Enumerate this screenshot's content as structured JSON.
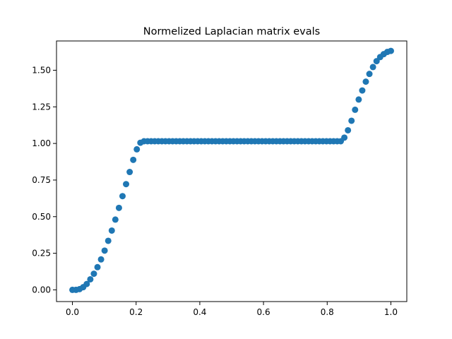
{
  "chart_data": {
    "type": "scatter",
    "title": "Normelized Laplacian matrix evals",
    "xlabel": "",
    "ylabel": "",
    "xlim": [
      -0.05,
      1.05
    ],
    "ylim": [
      -0.08,
      1.7
    ],
    "xticks": [
      0.0,
      0.2,
      0.4,
      0.6,
      0.8,
      1.0
    ],
    "xtick_labels": [
      "0.0",
      "0.2",
      "0.4",
      "0.6",
      "0.8",
      "1.0"
    ],
    "yticks": [
      0.0,
      0.25,
      0.5,
      0.75,
      1.0,
      1.25,
      1.5
    ],
    "ytick_labels": [
      "0.00",
      "0.25",
      "0.50",
      "0.75",
      "1.00",
      "1.25",
      "1.50"
    ],
    "grid": false,
    "marker_color": "#1f77b4",
    "series": [
      {
        "x": [
          0.0,
          0.0112,
          0.0225,
          0.0337,
          0.0449,
          0.0562,
          0.0674,
          0.0787,
          0.0899,
          0.1011,
          0.1124,
          0.1236,
          0.1348,
          0.1461,
          0.1573,
          0.1685,
          0.1798,
          0.191,
          0.2022,
          0.2135,
          0.2247,
          0.236,
          0.2472,
          0.2584,
          0.2697,
          0.2809,
          0.2921,
          0.3034,
          0.3146,
          0.3258,
          0.3371,
          0.3483,
          0.3596,
          0.3708,
          0.382,
          0.3933,
          0.4045,
          0.4157,
          0.427,
          0.4382,
          0.4494,
          0.4607,
          0.4719,
          0.4831,
          0.4944,
          0.5056,
          0.5169,
          0.5281,
          0.5393,
          0.5506,
          0.5618,
          0.573,
          0.5843,
          0.5955,
          0.6067,
          0.618,
          0.6292,
          0.6404,
          0.6517,
          0.6629,
          0.6742,
          0.6854,
          0.6966,
          0.7079,
          0.7191,
          0.7303,
          0.7416,
          0.7528,
          0.764,
          0.7753,
          0.7865,
          0.7978,
          0.809,
          0.8202,
          0.8315,
          0.8427,
          0.8539,
          0.8652,
          0.8764,
          0.8876,
          0.8989,
          0.9101,
          0.9213,
          0.9326,
          0.9438,
          0.9551,
          0.9663,
          0.9775,
          0.9888,
          1.0
        ],
        "y": [
          0.0,
          0.0,
          0.005,
          0.018,
          0.04,
          0.072,
          0.11,
          0.155,
          0.208,
          0.268,
          0.335,
          0.405,
          0.48,
          0.56,
          0.64,
          0.722,
          0.805,
          0.888,
          0.96,
          1.005,
          1.015,
          1.015,
          1.015,
          1.015,
          1.015,
          1.015,
          1.015,
          1.015,
          1.015,
          1.015,
          1.015,
          1.015,
          1.015,
          1.015,
          1.015,
          1.015,
          1.015,
          1.015,
          1.015,
          1.015,
          1.015,
          1.015,
          1.015,
          1.015,
          1.015,
          1.015,
          1.015,
          1.015,
          1.015,
          1.015,
          1.015,
          1.015,
          1.015,
          1.015,
          1.015,
          1.015,
          1.015,
          1.015,
          1.015,
          1.015,
          1.015,
          1.015,
          1.015,
          1.015,
          1.015,
          1.015,
          1.015,
          1.015,
          1.015,
          1.015,
          1.015,
          1.015,
          1.015,
          1.015,
          1.015,
          1.015,
          1.04,
          1.09,
          1.155,
          1.23,
          1.3,
          1.362,
          1.422,
          1.475,
          1.522,
          1.562,
          1.59,
          1.61,
          1.625,
          1.632
        ]
      }
    ]
  }
}
